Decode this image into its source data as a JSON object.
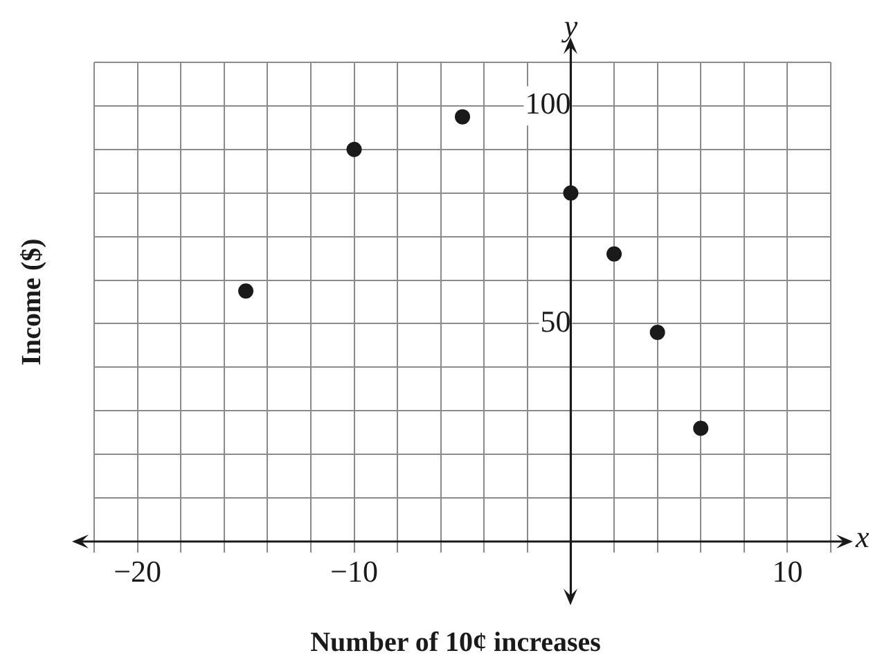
{
  "chart_data": {
    "type": "scatter",
    "xlabel": "Number of 10¢ increases",
    "ylabel": "Income ($)",
    "annotations": [
      "x",
      "y"
    ],
    "x": [
      -15,
      -10,
      -5,
      0,
      2,
      4,
      6
    ],
    "values": [
      57.5,
      90,
      97.5,
      80,
      66,
      48,
      26
    ],
    "color": "#1a1a1a",
    "marker": "circle",
    "grid": true,
    "xlim": [
      -22,
      12
    ],
    "xticks": [
      {
        "value": -22,
        "label": null
      },
      -20,
      {
        "value": -18,
        "label": null
      },
      {
        "value": -16,
        "label": null
      },
      {
        "value": -14,
        "label": null
      },
      {
        "value": -12,
        "label": null
      },
      -10,
      {
        "value": -8,
        "label": null
      },
      {
        "value": -6,
        "label": null
      },
      {
        "value": -4,
        "label": null
      },
      {
        "value": -2,
        "label": null
      },
      {
        "value": 0,
        "label": null
      },
      {
        "value": 2,
        "label": null
      },
      {
        "value": 4,
        "label": null
      },
      {
        "value": 6,
        "label": null
      },
      {
        "value": 8,
        "label": null
      },
      10,
      {
        "value": 12,
        "label": null
      }
    ],
    "ylim": [
      0,
      110
    ],
    "yticks": [
      {
        "value": 0,
        "label": null
      },
      {
        "value": 10,
        "label": null
      },
      {
        "value": 20,
        "label": null
      },
      {
        "value": 30,
        "label": null
      },
      {
        "value": 40,
        "label": null
      },
      50,
      {
        "value": 60,
        "label": null
      },
      {
        "value": 70,
        "label": null
      },
      {
        "value": 80,
        "label": null
      },
      {
        "value": 90,
        "label": null
      },
      100,
      {
        "value": 110,
        "label": null
      }
    ]
  }
}
